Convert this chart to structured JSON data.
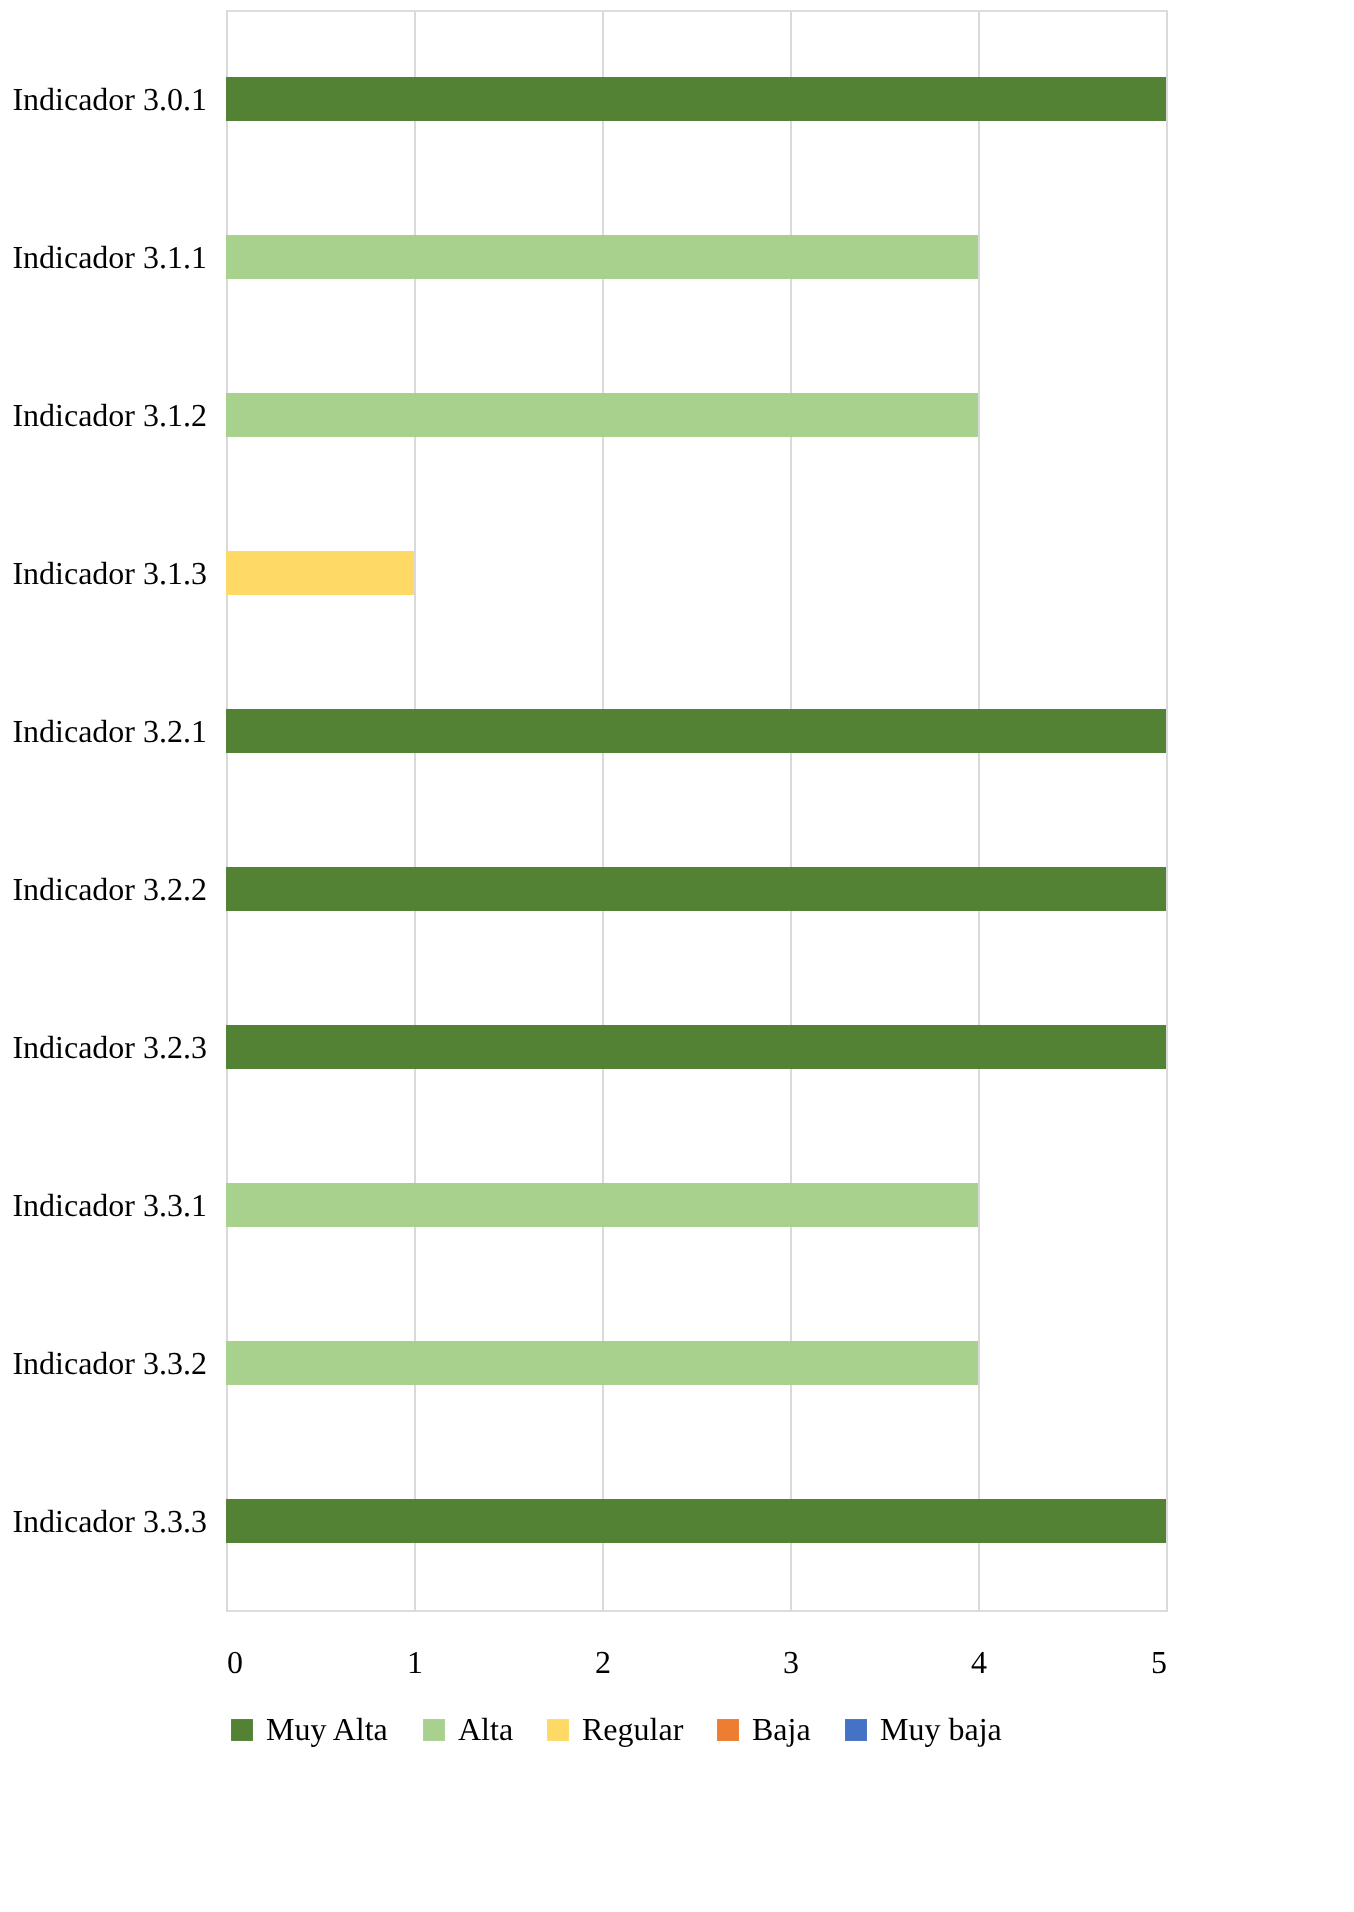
{
  "chart_data": {
    "type": "bar",
    "orientation": "horizontal",
    "categories": [
      "Indicador 3.0.1",
      "Indicador 3.1.1",
      "Indicador 3.1.2",
      "Indicador 3.1.3",
      "Indicador 3.2.1",
      "Indicador 3.2.2",
      "Indicador 3.2.3",
      "Indicador 3.3.1",
      "Indicador 3.3.2",
      "Indicador 3.3.3"
    ],
    "series": [
      {
        "name": "Muy Alta",
        "color": "#548235",
        "values": [
          5,
          null,
          null,
          null,
          5,
          5,
          5,
          null,
          null,
          5
        ]
      },
      {
        "name": "Alta",
        "color": "#a9d18e",
        "values": [
          null,
          4,
          4,
          null,
          null,
          null,
          null,
          4,
          4,
          null
        ]
      },
      {
        "name": "Regular",
        "color": "#ffd966",
        "values": [
          null,
          null,
          null,
          1,
          null,
          null,
          null,
          null,
          null,
          null
        ]
      },
      {
        "name": "Baja",
        "color": "#ed7d31",
        "values": [
          null,
          null,
          null,
          null,
          null,
          null,
          null,
          null,
          null,
          null
        ]
      },
      {
        "name": "Muy baja",
        "color": "#4472c4",
        "values": [
          null,
          null,
          null,
          null,
          null,
          null,
          null,
          null,
          null,
          null
        ]
      }
    ],
    "xlim": [
      0,
      5
    ],
    "xticks": [
      0,
      1,
      2,
      3,
      4,
      5
    ],
    "grid": "x",
    "legend": "bottom"
  }
}
